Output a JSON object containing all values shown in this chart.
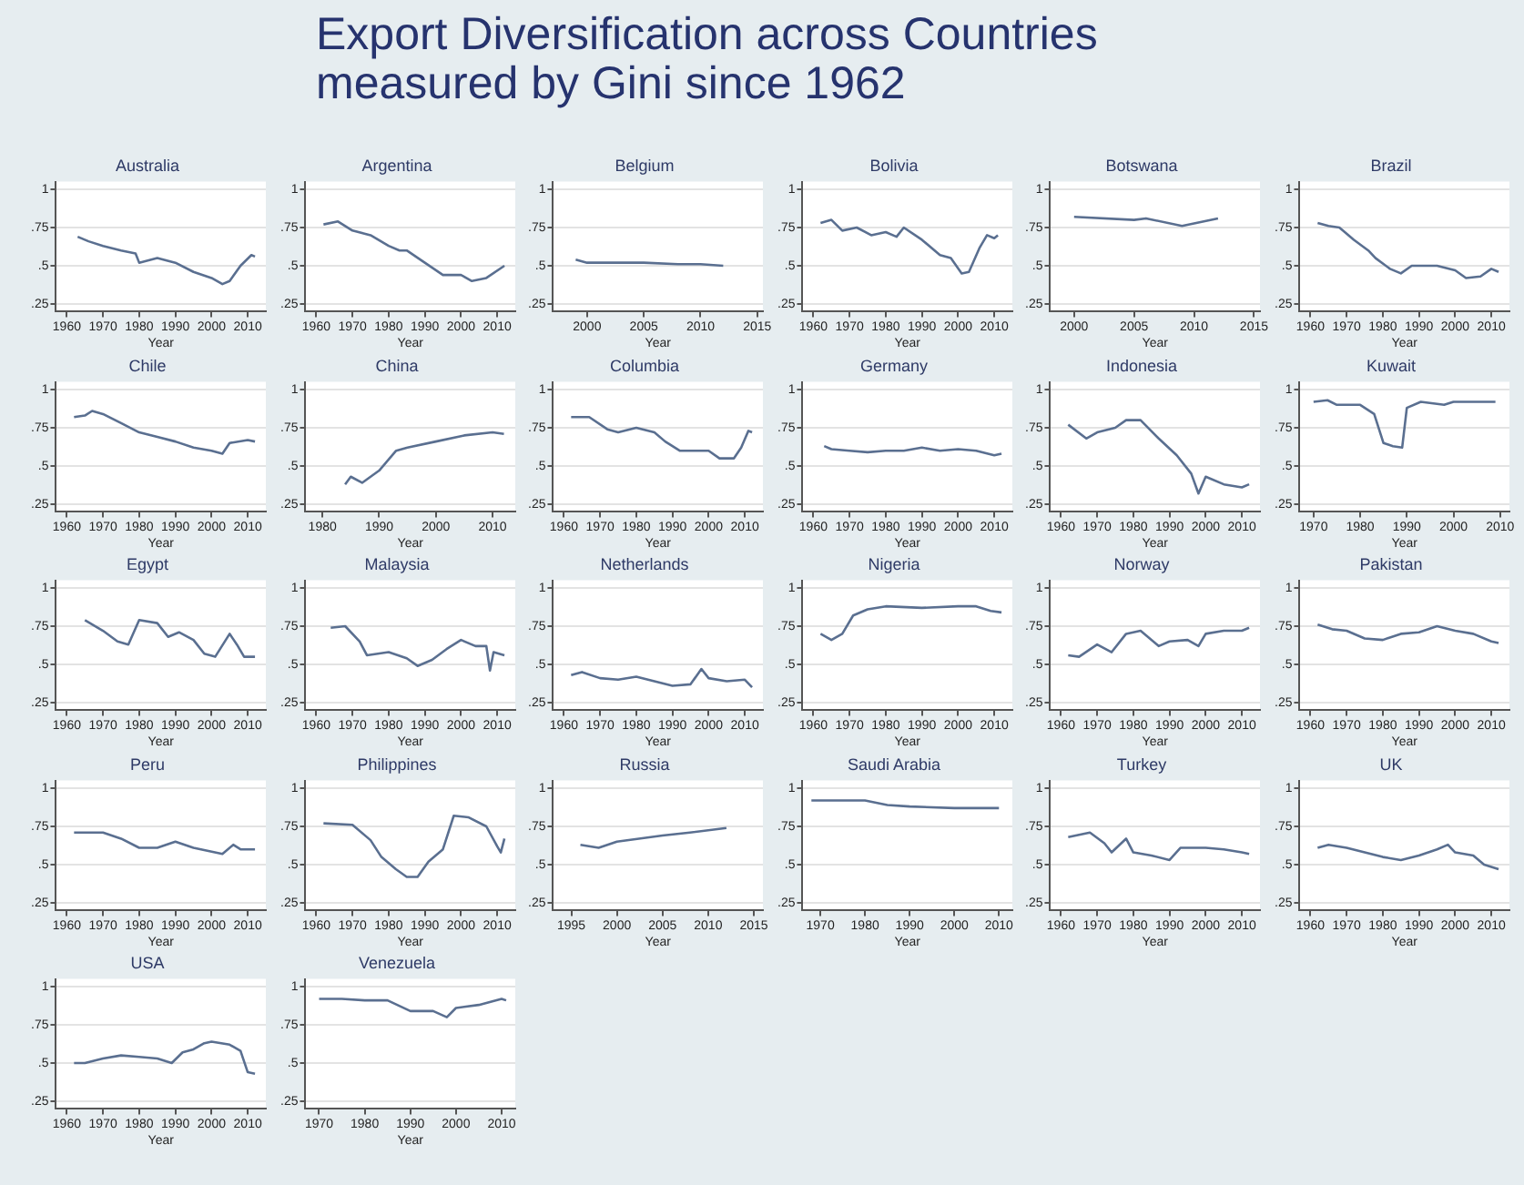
{
  "chart_data": [
    {
      "type": "other",
      "title": "Export Diversification across Countries measured by Gini since 1962"
    },
    {
      "type": "line",
      "title": "Australia",
      "xlabel": "Year",
      "color": "#5a6f90",
      "grid": "y",
      "xlim": [
        1957,
        2015
      ],
      "xticks": [
        1960,
        1970,
        1980,
        1990,
        2000,
        2010
      ],
      "ylim": [
        0.2,
        1.05
      ],
      "yticks": [
        {
          "value": 0.25,
          "label": ".25"
        },
        {
          "value": 0.5,
          "label": ".5"
        },
        {
          "value": 0.75,
          "label": ".75"
        },
        {
          "value": 1,
          "label": "1"
        }
      ],
      "x": [
        1963,
        1966,
        1970,
        1975,
        1979,
        1980,
        1985,
        1990,
        1995,
        2000,
        2003,
        2005,
        2008,
        2011,
        2012
      ],
      "values": [
        0.69,
        0.66,
        0.63,
        0.6,
        0.58,
        0.52,
        0.55,
        0.52,
        0.46,
        0.42,
        0.38,
        0.4,
        0.5,
        0.57,
        0.56
      ]
    },
    {
      "type": "line",
      "title": "Argentina",
      "xlabel": "Year",
      "color": "#5a6f90",
      "grid": "y",
      "xlim": [
        1957,
        2015
      ],
      "xticks": [
        1960,
        1970,
        1980,
        1990,
        2000,
        2010
      ],
      "ylim": [
        0.2,
        1.05
      ],
      "yticks": [
        {
          "value": 0.25,
          "label": ".25"
        },
        {
          "value": 0.5,
          "label": ".5"
        },
        {
          "value": 0.75,
          "label": ".75"
        },
        {
          "value": 1,
          "label": "1"
        }
      ],
      "x": [
        1962,
        1966,
        1970,
        1975,
        1980,
        1983,
        1985,
        1990,
        1995,
        2000,
        2003,
        2007,
        2012
      ],
      "values": [
        0.77,
        0.79,
        0.73,
        0.7,
        0.63,
        0.6,
        0.6,
        0.52,
        0.44,
        0.44,
        0.4,
        0.42,
        0.5
      ]
    },
    {
      "type": "line",
      "title": "Belgium",
      "xlabel": "Year",
      "color": "#5a6f90",
      "grid": "y",
      "xlim": [
        1997,
        2015.5
      ],
      "xticks": [
        2000,
        2005,
        2010,
        2015
      ],
      "ylim": [
        0.2,
        1.05
      ],
      "yticks": [
        {
          "value": 0.25,
          "label": ".25"
        },
        {
          "value": 0.5,
          "label": ".5"
        },
        {
          "value": 0.75,
          "label": ".75"
        },
        {
          "value": 1,
          "label": "1"
        }
      ],
      "x": [
        1999,
        2000,
        2005,
        2008,
        2010,
        2012
      ],
      "values": [
        0.54,
        0.52,
        0.52,
        0.51,
        0.51,
        0.5
      ]
    },
    {
      "type": "line",
      "title": "Bolivia",
      "xlabel": "Year",
      "color": "#5a6f90",
      "grid": "y",
      "xlim": [
        1957,
        2015
      ],
      "xticks": [
        1960,
        1970,
        1980,
        1990,
        2000,
        2010
      ],
      "ylim": [
        0.2,
        1.05
      ],
      "yticks": [
        {
          "value": 0.25,
          "label": ".25"
        },
        {
          "value": 0.5,
          "label": ".5"
        },
        {
          "value": 0.75,
          "label": ".75"
        },
        {
          "value": 1,
          "label": "1"
        }
      ],
      "x": [
        1962,
        1965,
        1968,
        1972,
        1976,
        1980,
        1983,
        1985,
        1990,
        1995,
        1998,
        2001,
        2003,
        2006,
        2008,
        2010,
        2011
      ],
      "values": [
        0.78,
        0.8,
        0.73,
        0.75,
        0.7,
        0.72,
        0.69,
        0.75,
        0.67,
        0.57,
        0.55,
        0.45,
        0.46,
        0.62,
        0.7,
        0.68,
        0.7
      ]
    },
    {
      "type": "line",
      "title": "Botswana",
      "xlabel": "Year",
      "color": "#5a6f90",
      "grid": "y",
      "xlim": [
        1998,
        2015.5
      ],
      "xticks": [
        2000,
        2005,
        2010,
        2015
      ],
      "ylim": [
        0.2,
        1.05
      ],
      "yticks": [
        {
          "value": 0.25,
          "label": ".25"
        },
        {
          "value": 0.5,
          "label": ".5"
        },
        {
          "value": 0.75,
          "label": ".75"
        },
        {
          "value": 1,
          "label": "1"
        }
      ],
      "x": [
        2000,
        2005,
        2006,
        2009,
        2012
      ],
      "values": [
        0.82,
        0.8,
        0.81,
        0.76,
        0.81
      ]
    },
    {
      "type": "line",
      "title": "Brazil",
      "xlabel": "Year",
      "color": "#5a6f90",
      "grid": "y",
      "xlim": [
        1957,
        2015
      ],
      "xticks": [
        1960,
        1970,
        1980,
        1990,
        2000,
        2010
      ],
      "ylim": [
        0.2,
        1.05
      ],
      "yticks": [
        {
          "value": 0.25,
          "label": ".25"
        },
        {
          "value": 0.5,
          "label": ".5"
        },
        {
          "value": 0.75,
          "label": ".75"
        },
        {
          "value": 1,
          "label": "1"
        }
      ],
      "x": [
        1962,
        1965,
        1968,
        1972,
        1976,
        1978,
        1982,
        1985,
        1988,
        1995,
        2000,
        2003,
        2007,
        2010,
        2012
      ],
      "values": [
        0.78,
        0.76,
        0.75,
        0.67,
        0.6,
        0.55,
        0.48,
        0.45,
        0.5,
        0.5,
        0.47,
        0.42,
        0.43,
        0.48,
        0.46
      ]
    },
    {
      "type": "line",
      "title": "Chile",
      "xlabel": "Year",
      "color": "#5a6f90",
      "grid": "y",
      "xlim": [
        1957,
        2015
      ],
      "xticks": [
        1960,
        1970,
        1980,
        1990,
        2000,
        2010
      ],
      "ylim": [
        0.2,
        1.05
      ],
      "yticks": [
        {
          "value": 0.25,
          "label": ".25"
        },
        {
          "value": 0.5,
          "label": ".5"
        },
        {
          "value": 0.75,
          "label": ".75"
        },
        {
          "value": 1,
          "label": "1"
        }
      ],
      "x": [
        1962,
        1965,
        1967,
        1970,
        1975,
        1980,
        1985,
        1990,
        1995,
        2000,
        2003,
        2005,
        2010,
        2012
      ],
      "values": [
        0.82,
        0.83,
        0.86,
        0.84,
        0.78,
        0.72,
        0.69,
        0.66,
        0.62,
        0.6,
        0.58,
        0.65,
        0.67,
        0.66
      ]
    },
    {
      "type": "line",
      "title": "China",
      "xlabel": "Year",
      "color": "#5a6f90",
      "grid": "y",
      "xlim": [
        1977,
        2014
      ],
      "xticks": [
        1980,
        1990,
        2000,
        2010
      ],
      "ylim": [
        0.2,
        1.05
      ],
      "yticks": [
        {
          "value": 0.25,
          "label": ".25"
        },
        {
          "value": 0.5,
          "label": ".5"
        },
        {
          "value": 0.75,
          "label": ".75"
        },
        {
          "value": 1,
          "label": "1"
        }
      ],
      "x": [
        1984,
        1985,
        1987,
        1990,
        1993,
        1995,
        2000,
        2005,
        2010,
        2012
      ],
      "values": [
        0.38,
        0.43,
        0.39,
        0.47,
        0.6,
        0.62,
        0.66,
        0.7,
        0.72,
        0.71
      ]
    },
    {
      "type": "line",
      "title": "Columbia",
      "xlabel": "Year",
      "color": "#5a6f90",
      "grid": "y",
      "xlim": [
        1957,
        2015
      ],
      "xticks": [
        1960,
        1970,
        1980,
        1990,
        2000,
        2010
      ],
      "ylim": [
        0.2,
        1.05
      ],
      "yticks": [
        {
          "value": 0.25,
          "label": ".25"
        },
        {
          "value": 0.5,
          "label": ".5"
        },
        {
          "value": 0.75,
          "label": ".75"
        },
        {
          "value": 1,
          "label": "1"
        }
      ],
      "x": [
        1962,
        1967,
        1972,
        1975,
        1980,
        1985,
        1988,
        1992,
        2000,
        2003,
        2007,
        2009,
        2011,
        2012
      ],
      "values": [
        0.82,
        0.82,
        0.74,
        0.72,
        0.75,
        0.72,
        0.66,
        0.6,
        0.6,
        0.55,
        0.55,
        0.62,
        0.73,
        0.72
      ]
    },
    {
      "type": "line",
      "title": "Germany",
      "xlabel": "Year",
      "color": "#5a6f90",
      "grid": "y",
      "xlim": [
        1957,
        2015
      ],
      "xticks": [
        1960,
        1970,
        1980,
        1990,
        2000,
        2010
      ],
      "ylim": [
        0.2,
        1.05
      ],
      "yticks": [
        {
          "value": 0.25,
          "label": ".25"
        },
        {
          "value": 0.5,
          "label": ".5"
        },
        {
          "value": 0.75,
          "label": ".75"
        },
        {
          "value": 1,
          "label": "1"
        }
      ],
      "x": [
        1963,
        1965,
        1970,
        1975,
        1980,
        1985,
        1990,
        1995,
        2000,
        2005,
        2010,
        2012
      ],
      "values": [
        0.63,
        0.61,
        0.6,
        0.59,
        0.6,
        0.6,
        0.62,
        0.6,
        0.61,
        0.6,
        0.57,
        0.58
      ]
    },
    {
      "type": "line",
      "title": "Indonesia",
      "xlabel": "Year",
      "color": "#5a6f90",
      "grid": "y",
      "xlim": [
        1957,
        2015
      ],
      "xticks": [
        1960,
        1970,
        1980,
        1990,
        2000,
        2010
      ],
      "ylim": [
        0.2,
        1.05
      ],
      "yticks": [
        {
          "value": 0.25,
          "label": ".25"
        },
        {
          "value": 0.5,
          "label": ".5"
        },
        {
          "value": 0.75,
          "label": ".75"
        },
        {
          "value": 1,
          "label": "1"
        }
      ],
      "x": [
        1962,
        1967,
        1970,
        1975,
        1978,
        1982,
        1987,
        1992,
        1996,
        1998,
        2000,
        2005,
        2010,
        2012
      ],
      "values": [
        0.77,
        0.68,
        0.72,
        0.75,
        0.8,
        0.8,
        0.68,
        0.57,
        0.45,
        0.32,
        0.43,
        0.38,
        0.36,
        0.38
      ]
    },
    {
      "type": "line",
      "title": "Kuwait",
      "xlabel": "Year",
      "color": "#5a6f90",
      "grid": "y",
      "xlim": [
        1967,
        2012
      ],
      "xticks": [
        1970,
        1980,
        1990,
        2000,
        2010
      ],
      "ylim": [
        0.2,
        1.05
      ],
      "yticks": [
        {
          "value": 0.25,
          "label": ".25"
        },
        {
          "value": 0.5,
          "label": ".5"
        },
        {
          "value": 0.75,
          "label": ".75"
        },
        {
          "value": 1,
          "label": "1"
        }
      ],
      "x": [
        1970,
        1973,
        1975,
        1980,
        1983,
        1985,
        1987,
        1989,
        1990,
        1993,
        1998,
        2000,
        2005,
        2009
      ],
      "values": [
        0.92,
        0.93,
        0.9,
        0.9,
        0.84,
        0.65,
        0.63,
        0.62,
        0.88,
        0.92,
        0.9,
        0.92,
        0.92,
        0.92
      ]
    },
    {
      "type": "line",
      "title": "Egypt",
      "xlabel": "Year",
      "color": "#5a6f90",
      "grid": "y",
      "xlim": [
        1957,
        2015
      ],
      "xticks": [
        1960,
        1970,
        1980,
        1990,
        2000,
        2010
      ],
      "ylim": [
        0.2,
        1.05
      ],
      "yticks": [
        {
          "value": 0.25,
          "label": ".25"
        },
        {
          "value": 0.5,
          "label": ".5"
        },
        {
          "value": 0.75,
          "label": ".75"
        },
        {
          "value": 1,
          "label": "1"
        }
      ],
      "x": [
        1965,
        1970,
        1974,
        1977,
        1980,
        1985,
        1988,
        1991,
        1995,
        1998,
        2001,
        2005,
        2007,
        2009,
        2012
      ],
      "values": [
        0.79,
        0.72,
        0.65,
        0.63,
        0.79,
        0.77,
        0.68,
        0.71,
        0.66,
        0.57,
        0.55,
        0.7,
        0.63,
        0.55,
        0.55
      ]
    },
    {
      "type": "line",
      "title": "Malaysia",
      "xlabel": "Year",
      "color": "#5a6f90",
      "grid": "y",
      "xlim": [
        1957,
        2015
      ],
      "xticks": [
        1960,
        1970,
        1980,
        1990,
        2000,
        2010
      ],
      "ylim": [
        0.2,
        1.05
      ],
      "yticks": [
        {
          "value": 0.25,
          "label": ".25"
        },
        {
          "value": 0.5,
          "label": ".5"
        },
        {
          "value": 0.75,
          "label": ".75"
        },
        {
          "value": 1,
          "label": "1"
        }
      ],
      "x": [
        1964,
        1968,
        1972,
        1974,
        1980,
        1985,
        1988,
        1992,
        1996,
        2000,
        2004,
        2007,
        2008,
        2009,
        2012
      ],
      "values": [
        0.74,
        0.75,
        0.65,
        0.56,
        0.58,
        0.54,
        0.49,
        0.53,
        0.6,
        0.66,
        0.62,
        0.62,
        0.46,
        0.58,
        0.56
      ]
    },
    {
      "type": "line",
      "title": "Netherlands",
      "xlabel": "Year",
      "color": "#5a6f90",
      "grid": "y",
      "xlim": [
        1957,
        2015
      ],
      "xticks": [
        1960,
        1970,
        1980,
        1990,
        2000,
        2010
      ],
      "ylim": [
        0.2,
        1.05
      ],
      "yticks": [
        {
          "value": 0.25,
          "label": ".25"
        },
        {
          "value": 0.5,
          "label": ".5"
        },
        {
          "value": 0.75,
          "label": ".75"
        },
        {
          "value": 1,
          "label": "1"
        }
      ],
      "x": [
        1962,
        1965,
        1970,
        1975,
        1980,
        1985,
        1990,
        1995,
        1998,
        2000,
        2005,
        2010,
        2012
      ],
      "values": [
        0.43,
        0.45,
        0.41,
        0.4,
        0.42,
        0.39,
        0.36,
        0.37,
        0.47,
        0.41,
        0.39,
        0.4,
        0.35
      ]
    },
    {
      "type": "line",
      "title": "Nigeria",
      "xlabel": "Year",
      "color": "#5a6f90",
      "grid": "y",
      "xlim": [
        1957,
        2015
      ],
      "xticks": [
        1960,
        1970,
        1980,
        1990,
        2000,
        2010
      ],
      "ylim": [
        0.2,
        1.05
      ],
      "yticks": [
        {
          "value": 0.25,
          "label": ".25"
        },
        {
          "value": 0.5,
          "label": ".5"
        },
        {
          "value": 0.75,
          "label": ".75"
        },
        {
          "value": 1,
          "label": "1"
        }
      ],
      "x": [
        1962,
        1965,
        1968,
        1971,
        1975,
        1980,
        1990,
        2000,
        2005,
        2009,
        2012
      ],
      "values": [
        0.7,
        0.66,
        0.7,
        0.82,
        0.86,
        0.88,
        0.87,
        0.88,
        0.88,
        0.85,
        0.84
      ]
    },
    {
      "type": "line",
      "title": "Norway",
      "xlabel": "Year",
      "color": "#5a6f90",
      "grid": "y",
      "xlim": [
        1957,
        2015
      ],
      "xticks": [
        1960,
        1970,
        1980,
        1990,
        2000,
        2010
      ],
      "ylim": [
        0.2,
        1.05
      ],
      "yticks": [
        {
          "value": 0.25,
          "label": ".25"
        },
        {
          "value": 0.5,
          "label": ".5"
        },
        {
          "value": 0.75,
          "label": ".75"
        },
        {
          "value": 1,
          "label": "1"
        }
      ],
      "x": [
        1962,
        1965,
        1970,
        1974,
        1978,
        1982,
        1987,
        1990,
        1995,
        1998,
        2000,
        2005,
        2010,
        2012
      ],
      "values": [
        0.56,
        0.55,
        0.63,
        0.58,
        0.7,
        0.72,
        0.62,
        0.65,
        0.66,
        0.62,
        0.7,
        0.72,
        0.72,
        0.74
      ]
    },
    {
      "type": "line",
      "title": "Pakistan",
      "xlabel": "Year",
      "color": "#5a6f90",
      "grid": "y",
      "xlim": [
        1957,
        2015
      ],
      "xticks": [
        1960,
        1970,
        1980,
        1990,
        2000,
        2010
      ],
      "ylim": [
        0.2,
        1.05
      ],
      "yticks": [
        {
          "value": 0.25,
          "label": ".25"
        },
        {
          "value": 0.5,
          "label": ".5"
        },
        {
          "value": 0.75,
          "label": ".75"
        },
        {
          "value": 1,
          "label": "1"
        }
      ],
      "x": [
        1962,
        1966,
        1970,
        1975,
        1980,
        1985,
        1990,
        1995,
        2000,
        2005,
        2010,
        2012
      ],
      "values": [
        0.76,
        0.73,
        0.72,
        0.67,
        0.66,
        0.7,
        0.71,
        0.75,
        0.72,
        0.7,
        0.65,
        0.64
      ]
    },
    {
      "type": "line",
      "title": "Peru",
      "xlabel": "Year",
      "color": "#5a6f90",
      "grid": "y",
      "xlim": [
        1957,
        2015
      ],
      "xticks": [
        1960,
        1970,
        1980,
        1990,
        2000,
        2010
      ],
      "ylim": [
        0.2,
        1.05
      ],
      "yticks": [
        {
          "value": 0.25,
          "label": ".25"
        },
        {
          "value": 0.5,
          "label": ".5"
        },
        {
          "value": 0.75,
          "label": ".75"
        },
        {
          "value": 1,
          "label": "1"
        }
      ],
      "x": [
        1962,
        1970,
        1975,
        1980,
        1985,
        1990,
        1995,
        2003,
        2006,
        2008,
        2012
      ],
      "values": [
        0.71,
        0.71,
        0.67,
        0.61,
        0.61,
        0.65,
        0.61,
        0.57,
        0.63,
        0.6,
        0.6
      ]
    },
    {
      "type": "line",
      "title": "Philippines",
      "xlabel": "Year",
      "color": "#5a6f90",
      "grid": "y",
      "xlim": [
        1957,
        2015
      ],
      "xticks": [
        1960,
        1970,
        1980,
        1990,
        2000,
        2010
      ],
      "ylim": [
        0.2,
        1.05
      ],
      "yticks": [
        {
          "value": 0.25,
          "label": ".25"
        },
        {
          "value": 0.5,
          "label": ".5"
        },
        {
          "value": 0.75,
          "label": ".75"
        },
        {
          "value": 1,
          "label": "1"
        }
      ],
      "x": [
        1962,
        1970,
        1975,
        1978,
        1982,
        1985,
        1988,
        1991,
        1995,
        1998,
        2002,
        2007,
        2010,
        2011,
        2012
      ],
      "values": [
        0.77,
        0.76,
        0.66,
        0.55,
        0.47,
        0.42,
        0.42,
        0.52,
        0.6,
        0.82,
        0.81,
        0.75,
        0.62,
        0.58,
        0.67
      ]
    },
    {
      "type": "line",
      "title": "Russia",
      "xlabel": "Year",
      "color": "#5a6f90",
      "grid": "y",
      "xlim": [
        1993,
        2016
      ],
      "xticks": [
        1995,
        2000,
        2005,
        2010,
        2015
      ],
      "ylim": [
        0.2,
        1.05
      ],
      "yticks": [
        {
          "value": 0.25,
          "label": ".25"
        },
        {
          "value": 0.5,
          "label": ".5"
        },
        {
          "value": 0.75,
          "label": ".75"
        },
        {
          "value": 1,
          "label": "1"
        }
      ],
      "x": [
        1996,
        1998,
        2000,
        2005,
        2008,
        2012
      ],
      "values": [
        0.63,
        0.61,
        0.65,
        0.69,
        0.71,
        0.74
      ]
    },
    {
      "type": "line",
      "title": "Saudi Arabia",
      "xlabel": "Year",
      "color": "#5a6f90",
      "grid": "y",
      "xlim": [
        1966,
        2013
      ],
      "xticks": [
        1970,
        1980,
        1990,
        2000,
        2010
      ],
      "ylim": [
        0.2,
        1.05
      ],
      "yticks": [
        {
          "value": 0.25,
          "label": ".25"
        },
        {
          "value": 0.5,
          "label": ".5"
        },
        {
          "value": 0.75,
          "label": ".75"
        },
        {
          "value": 1,
          "label": "1"
        }
      ],
      "x": [
        1968,
        1980,
        1985,
        1990,
        2000,
        2010
      ],
      "values": [
        0.92,
        0.92,
        0.89,
        0.88,
        0.87,
        0.87
      ]
    },
    {
      "type": "line",
      "title": "Turkey",
      "xlabel": "Year",
      "color": "#5a6f90",
      "grid": "y",
      "xlim": [
        1957,
        2015
      ],
      "xticks": [
        1960,
        1970,
        1980,
        1990,
        2000,
        2010
      ],
      "ylim": [
        0.2,
        1.05
      ],
      "yticks": [
        {
          "value": 0.25,
          "label": ".25"
        },
        {
          "value": 0.5,
          "label": ".5"
        },
        {
          "value": 0.75,
          "label": ".75"
        },
        {
          "value": 1,
          "label": "1"
        }
      ],
      "x": [
        1962,
        1968,
        1972,
        1974,
        1978,
        1980,
        1985,
        1990,
        1993,
        2000,
        2005,
        2010,
        2012
      ],
      "values": [
        0.68,
        0.71,
        0.64,
        0.58,
        0.67,
        0.58,
        0.56,
        0.53,
        0.61,
        0.61,
        0.6,
        0.58,
        0.57
      ]
    },
    {
      "type": "line",
      "title": "UK",
      "xlabel": "Year",
      "color": "#5a6f90",
      "grid": "y",
      "xlim": [
        1957,
        2015
      ],
      "xticks": [
        1960,
        1970,
        1980,
        1990,
        2000,
        2010
      ],
      "ylim": [
        0.2,
        1.05
      ],
      "yticks": [
        {
          "value": 0.25,
          "label": ".25"
        },
        {
          "value": 0.5,
          "label": ".5"
        },
        {
          "value": 0.75,
          "label": ".75"
        },
        {
          "value": 1,
          "label": "1"
        }
      ],
      "x": [
        1962,
        1965,
        1970,
        1975,
        1980,
        1985,
        1990,
        1995,
        1998,
        2000,
        2005,
        2008,
        2012
      ],
      "values": [
        0.61,
        0.63,
        0.61,
        0.58,
        0.55,
        0.53,
        0.56,
        0.6,
        0.63,
        0.58,
        0.56,
        0.5,
        0.47
      ]
    },
    {
      "type": "line",
      "title": "USA",
      "xlabel": "Year",
      "color": "#5a6f90",
      "grid": "y",
      "xlim": [
        1957,
        2015
      ],
      "xticks": [
        1960,
        1970,
        1980,
        1990,
        2000,
        2010
      ],
      "ylim": [
        0.2,
        1.05
      ],
      "yticks": [
        {
          "value": 0.25,
          "label": ".25"
        },
        {
          "value": 0.5,
          "label": ".5"
        },
        {
          "value": 0.75,
          "label": ".75"
        },
        {
          "value": 1,
          "label": "1"
        }
      ],
      "x": [
        1962,
        1965,
        1970,
        1975,
        1980,
        1985,
        1989,
        1992,
        1995,
        1998,
        2000,
        2005,
        2008,
        2010,
        2012
      ],
      "values": [
        0.5,
        0.5,
        0.53,
        0.55,
        0.54,
        0.53,
        0.5,
        0.57,
        0.59,
        0.63,
        0.64,
        0.62,
        0.58,
        0.44,
        0.43
      ]
    },
    {
      "type": "line",
      "title": "Venezuela",
      "xlabel": "Year",
      "color": "#5a6f90",
      "grid": "y",
      "xlim": [
        1967,
        2013
      ],
      "xticks": [
        1970,
        1980,
        1990,
        2000,
        2010
      ],
      "ylim": [
        0.2,
        1.05
      ],
      "yticks": [
        {
          "value": 0.25,
          "label": ".25"
        },
        {
          "value": 0.5,
          "label": ".5"
        },
        {
          "value": 0.75,
          "label": ".75"
        },
        {
          "value": 1,
          "label": "1"
        }
      ],
      "x": [
        1970,
        1975,
        1980,
        1985,
        1990,
        1995,
        1998,
        2000,
        2005,
        2010,
        2011
      ],
      "values": [
        0.92,
        0.92,
        0.91,
        0.91,
        0.84,
        0.84,
        0.8,
        0.86,
        0.88,
        0.92,
        0.91
      ]
    }
  ]
}
